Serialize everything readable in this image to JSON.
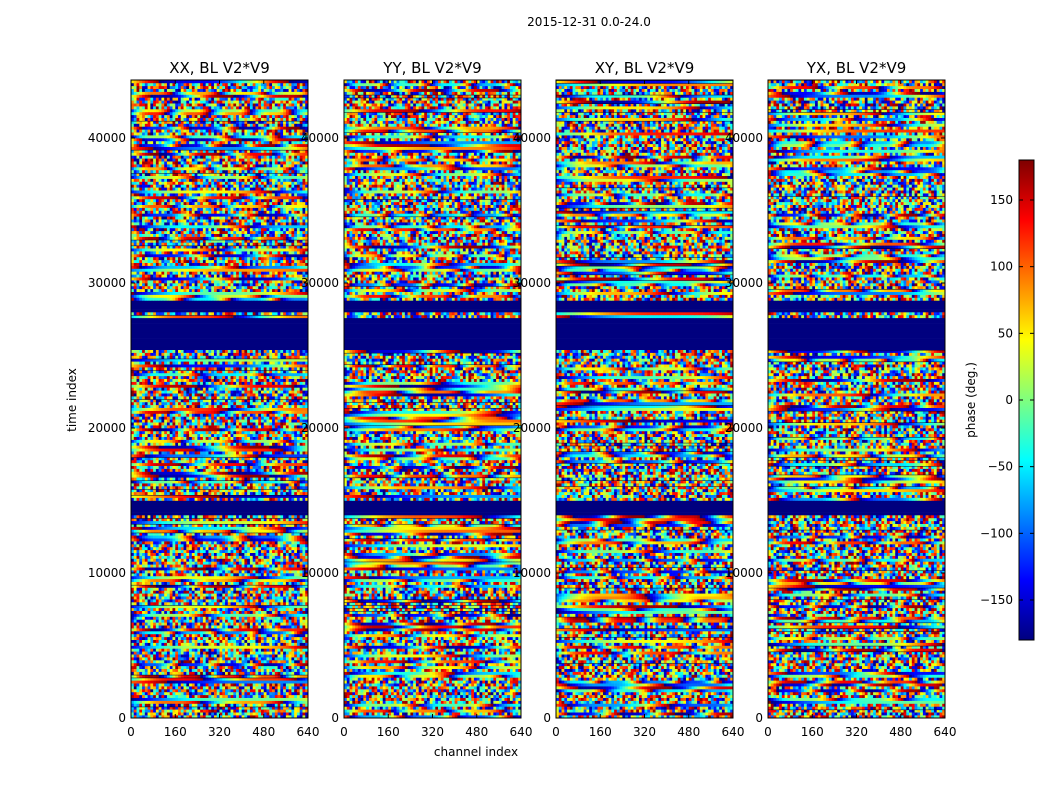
{
  "chart_data": {
    "type": "heatmap",
    "suptitle": "2015-12-31 0.0-24.0",
    "xlabel": "channel index",
    "ylabel": "time index",
    "xlim": [
      0,
      640
    ],
    "ylim": [
      0,
      44000
    ],
    "xticks": [
      0,
      160,
      320,
      480,
      640
    ],
    "yticks": [
      0,
      10000,
      20000,
      30000,
      40000
    ],
    "panels": [
      {
        "title": "XX, BL V2*V9",
        "polarization": "XX"
      },
      {
        "title": "YY, BL V2*V9",
        "polarization": "YY"
      },
      {
        "title": "XY, BL V2*V9",
        "polarization": "XY"
      },
      {
        "title": "YX, BL V2*V9",
        "polarization": "YX"
      }
    ],
    "masked_time_bands": [
      [
        14000,
        15000
      ],
      [
        25500,
        27500
      ],
      [
        28000,
        28700
      ]
    ],
    "colorbar": {
      "label": "phase (deg.)",
      "range": [
        -180,
        180
      ],
      "ticks": [
        -150,
        -100,
        -50,
        0,
        50,
        100,
        150
      ],
      "colormap": "jet",
      "colors": [
        "#00007f",
        "#0000ff",
        "#007fff",
        "#00ffff",
        "#7fff7f",
        "#ffff00",
        "#ff7f00",
        "#ff0000",
        "#7f0000"
      ]
    }
  }
}
